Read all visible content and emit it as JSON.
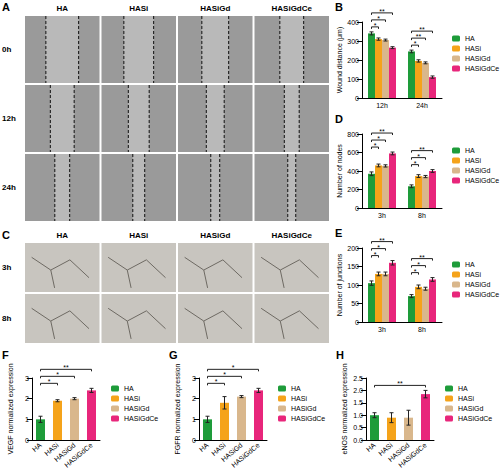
{
  "chart_data": [
    {
      "panel": "B",
      "type": "bar",
      "y_label": "Wound distance (μm)",
      "categories": [
        "12h",
        "24h"
      ],
      "series": [
        {
          "name": "HA",
          "color": "#1e9c3a",
          "values": [
            340,
            245
          ],
          "errors": [
            8,
            7
          ]
        },
        {
          "name": "HASi",
          "color": "#f5a31a",
          "values": [
            310,
            195
          ],
          "errors": [
            6,
            6
          ]
        },
        {
          "name": "HASiGd",
          "color": "#d9b78c",
          "values": [
            305,
            185
          ],
          "errors": [
            5,
            5
          ]
        },
        {
          "name": "HASiGdCe",
          "color": "#e8267b",
          "values": [
            265,
            110
          ],
          "errors": [
            5,
            6
          ]
        }
      ],
      "ylim": [
        0,
        400
      ],
      "yticks": [
        0,
        100,
        200,
        300,
        400
      ],
      "grid": false,
      "legend": "right",
      "significance": [
        {
          "category": "12h",
          "pair": [
            "HA",
            "HASi"
          ],
          "label": "*"
        },
        {
          "category": "12h",
          "pair": [
            "HA",
            "HASiGd"
          ],
          "label": "*"
        },
        {
          "category": "12h",
          "pair": [
            "HA",
            "HASiGdCe"
          ],
          "label": "**"
        },
        {
          "category": "24h",
          "pair": [
            "HA",
            "HASi"
          ],
          "label": "*"
        },
        {
          "category": "24h",
          "pair": [
            "HA",
            "HASiGd"
          ],
          "label": "**"
        },
        {
          "category": "24h",
          "pair": [
            "HA",
            "HASiGdCe"
          ],
          "label": "**"
        }
      ]
    },
    {
      "panel": "D",
      "type": "bar",
      "y_label": "Number of nodes",
      "categories": [
        "3h",
        "8h"
      ],
      "series": [
        {
          "name": "HA",
          "color": "#1e9c3a",
          "values": [
            370,
            235
          ],
          "errors": [
            20,
            15
          ]
        },
        {
          "name": "HASi",
          "color": "#f5a31a",
          "values": [
            460,
            345
          ],
          "errors": [
            15,
            15
          ]
        },
        {
          "name": "HASiGd",
          "color": "#d9b78c",
          "values": [
            455,
            340
          ],
          "errors": [
            12,
            12
          ]
        },
        {
          "name": "HASiGdCe",
          "color": "#e8267b",
          "values": [
            590,
            400
          ],
          "errors": [
            15,
            15
          ]
        }
      ],
      "ylim": [
        0,
        800
      ],
      "yticks": [
        0,
        200,
        400,
        600,
        800
      ],
      "grid": false,
      "legend": "right",
      "significance": [
        {
          "category": "3h",
          "pair": [
            "HA",
            "HASi"
          ],
          "label": "*"
        },
        {
          "category": "3h",
          "pair": [
            "HA",
            "HASiGd"
          ],
          "label": "*"
        },
        {
          "category": "3h",
          "pair": [
            "HA",
            "HASiGdCe"
          ],
          "label": "**"
        },
        {
          "category": "8h",
          "pair": [
            "HA",
            "HASi"
          ],
          "label": "*"
        },
        {
          "category": "8h",
          "pair": [
            "HA",
            "HASiGd"
          ],
          "label": "*"
        },
        {
          "category": "8h",
          "pair": [
            "HA",
            "HASiGdCe"
          ],
          "label": "**"
        }
      ]
    },
    {
      "panel": "E",
      "type": "bar",
      "y_label": "Number of junctions",
      "categories": [
        "3h",
        "8h"
      ],
      "series": [
        {
          "name": "HA",
          "color": "#1e9c3a",
          "values": [
            105,
            70
          ],
          "errors": [
            6,
            4
          ]
        },
        {
          "name": "HASi",
          "color": "#f5a31a",
          "values": [
            130,
            95
          ],
          "errors": [
            5,
            5
          ]
        },
        {
          "name": "HASiGd",
          "color": "#d9b78c",
          "values": [
            130,
            90
          ],
          "errors": [
            5,
            4
          ]
        },
        {
          "name": "HASiGdCe",
          "color": "#e8267b",
          "values": [
            160,
            115
          ],
          "errors": [
            6,
            5
          ]
        }
      ],
      "ylim": [
        0,
        200
      ],
      "yticks": [
        0,
        50,
        100,
        150,
        200
      ],
      "grid": false,
      "legend": "right",
      "significance": [
        {
          "category": "3h",
          "pair": [
            "HA",
            "HASi"
          ],
          "label": "*"
        },
        {
          "category": "3h",
          "pair": [
            "HA",
            "HASiGd"
          ],
          "label": "*"
        },
        {
          "category": "3h",
          "pair": [
            "HA",
            "HASiGdCe"
          ],
          "label": "**"
        },
        {
          "category": "8h",
          "pair": [
            "HA",
            "HASi"
          ],
          "label": "*"
        },
        {
          "category": "8h",
          "pair": [
            "HA",
            "HASiGd"
          ],
          "label": "*"
        },
        {
          "category": "8h",
          "pair": [
            "HA",
            "HASiGdCe"
          ],
          "label": "**"
        }
      ]
    },
    {
      "panel": "F",
      "type": "bar",
      "y_label": "VEGF normalized expression",
      "categories": [
        "HA",
        "HASi",
        "HASiGd",
        "HASiGdCe"
      ],
      "values": [
        1.0,
        1.9,
        2.0,
        2.4
      ],
      "errors": [
        0.15,
        0.05,
        0.05,
        0.1
      ],
      "colors": [
        "#1e9c3a",
        "#f5a31a",
        "#d9b78c",
        "#e8267b"
      ],
      "ylim": [
        0,
        3
      ],
      "yticks": [
        0,
        1,
        2,
        3
      ],
      "grid": false,
      "legend": "right",
      "significance": [
        {
          "pair": [
            "HA",
            "HASi"
          ],
          "label": "*"
        },
        {
          "pair": [
            "HA",
            "HASiGd"
          ],
          "label": "*"
        },
        {
          "pair": [
            "HA",
            "HASiGdCe"
          ],
          "label": "**"
        }
      ]
    },
    {
      "panel": "G",
      "type": "bar",
      "y_label": "FGFR normalized expression",
      "categories": [
        "HA",
        "HASi",
        "HASiGd",
        "HASiGdCe"
      ],
      "values": [
        1.0,
        1.8,
        2.1,
        2.4
      ],
      "errors": [
        0.15,
        0.3,
        0.05,
        0.1
      ],
      "colors": [
        "#1e9c3a",
        "#f5a31a",
        "#d9b78c",
        "#e8267b"
      ],
      "ylim": [
        0,
        3
      ],
      "yticks": [
        0,
        1,
        2,
        3
      ],
      "grid": false,
      "legend": "right",
      "significance": [
        {
          "pair": [
            "HA",
            "HASi"
          ],
          "label": "*"
        },
        {
          "pair": [
            "HA",
            "HASiGd"
          ],
          "label": "*"
        },
        {
          "pair": [
            "HA",
            "HASiGdCe"
          ],
          "label": "*"
        }
      ]
    },
    {
      "panel": "H",
      "type": "bar",
      "y_label": "eNOS normalized expression",
      "categories": [
        "HA",
        "HASi",
        "HASiGd",
        "HASiGdCe"
      ],
      "values": [
        1.0,
        0.9,
        0.9,
        1.85
      ],
      "errors": [
        0.1,
        0.2,
        0.3,
        0.15
      ],
      "colors": [
        "#1e9c3a",
        "#f5a31a",
        "#d9b78c",
        "#e8267b"
      ],
      "ylim": [
        0,
        2.5
      ],
      "yticks": [
        {
          "value": 0,
          "label": "0.0"
        },
        0.5,
        {
          "value": 1,
          "label": "1.0"
        },
        1.5,
        {
          "value": 2,
          "label": "2.0"
        },
        2.5
      ],
      "grid": false,
      "legend": "right",
      "significance": [
        {
          "pair": [
            "HA",
            "HASiGdCe"
          ],
          "label": "**"
        }
      ]
    }
  ],
  "image_panels": [
    {
      "panel": "A",
      "columns": [
        "HA",
        "HASi",
        "HASiGd",
        "HASiGdCe"
      ],
      "rows": [
        "0h",
        "12h",
        "24h"
      ]
    },
    {
      "panel": "C",
      "columns": [
        "HA",
        "HASi",
        "HASiGd",
        "HASiGdCe"
      ],
      "rows": [
        "3h",
        "8h"
      ]
    }
  ]
}
